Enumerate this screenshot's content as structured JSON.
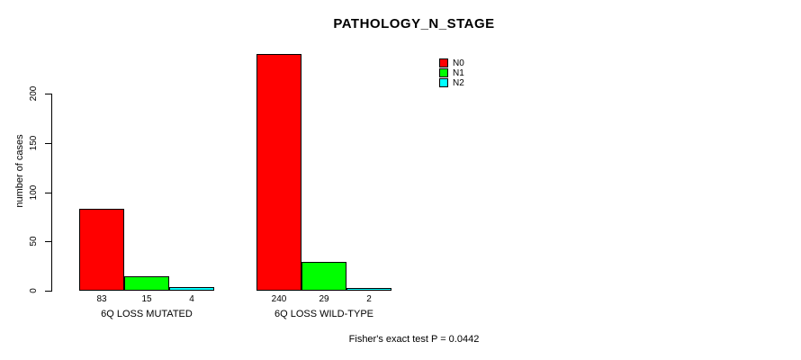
{
  "chart_data": {
    "type": "bar",
    "title": "PATHOLOGY_N_STAGE",
    "ylabel": "number of cases",
    "xlabel": "",
    "categories": [
      "6Q LOSS MUTATED",
      "6Q LOSS WILD-TYPE"
    ],
    "series": [
      {
        "name": "N0",
        "color": "#ff0000",
        "values": [
          83,
          240
        ]
      },
      {
        "name": "N1",
        "color": "#00ff00",
        "values": [
          15,
          29
        ]
      },
      {
        "name": "N2",
        "color": "#00ffff",
        "values": [
          4,
          2
        ]
      }
    ],
    "y_ticks": [
      0,
      50,
      100,
      150,
      200
    ],
    "ylim": [
      0,
      240
    ],
    "grid": false,
    "legend_position": "top-right-inside",
    "bar_value_labels_shown": true,
    "annotation": "Fisher's exact test P = 0.0442"
  }
}
